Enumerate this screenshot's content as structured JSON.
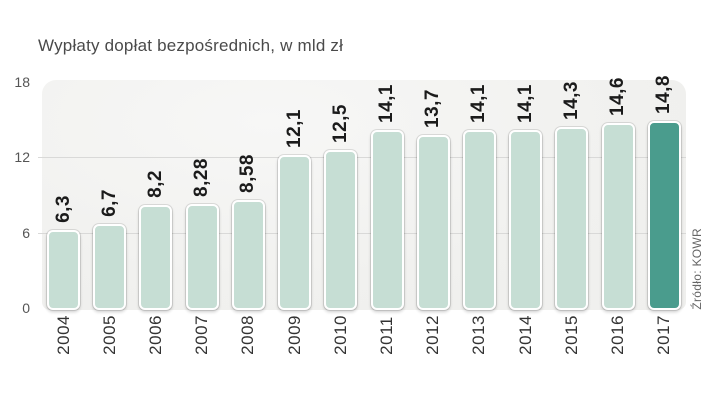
{
  "title": "Wypłaty dopłat bezpośrednich, w mld zł",
  "source": "Źródło: KOWR",
  "colors": {
    "bar": "#c6ded4",
    "bar_highlight": "#4a9c8d",
    "plot_bg": "#f1f1ef",
    "gridline": "#d9d9d8",
    "title_text": "#4a4a4a",
    "axis_text": "#555555",
    "value_text": "#1b1b1b",
    "year_text": "#333333",
    "source_text": "#666666"
  },
  "chart_data": {
    "type": "bar",
    "title": "Wypłaty dopłat bezpośrednich, w mld zł",
    "categories": [
      "2004",
      "2005",
      "2006",
      "2007",
      "2008",
      "2009",
      "2010",
      "2011",
      "2012",
      "2013",
      "2014",
      "2015",
      "2016",
      "2017"
    ],
    "values": [
      6.3,
      6.7,
      8.2,
      8.28,
      8.58,
      12.1,
      12.5,
      14.1,
      13.7,
      14.1,
      14.1,
      14.3,
      14.6,
      14.8
    ],
    "value_labels": [
      "6,3",
      "6,7",
      "8,2",
      "8,28",
      "8,58",
      "12,1",
      "12,5",
      "14,1",
      "13,7",
      "14,1",
      "14,1",
      "14,3",
      "14,6",
      "14,8"
    ],
    "highlighted_index": 13,
    "xlabel": "",
    "ylabel": "",
    "unit": "mld zł",
    "ylim": [
      0,
      18
    ],
    "yticks": [
      18,
      12,
      6,
      0
    ],
    "grid": "horizontal",
    "legend": "none",
    "source": "Źródło: KOWR"
  }
}
